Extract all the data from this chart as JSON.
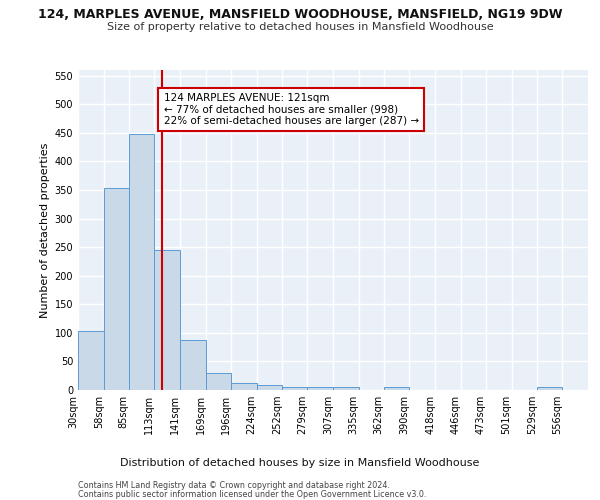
{
  "title1": "124, MARPLES AVENUE, MANSFIELD WOODHOUSE, MANSFIELD, NG19 9DW",
  "title2": "Size of property relative to detached houses in Mansfield Woodhouse",
  "xlabel": "Distribution of detached houses by size in Mansfield Woodhouse",
  "ylabel": "Number of detached properties",
  "footer1": "Contains HM Land Registry data © Crown copyright and database right 2024.",
  "footer2": "Contains public sector information licensed under the Open Government Licence v3.0.",
  "bin_edges": [
    30,
    58,
    85,
    113,
    141,
    169,
    196,
    224,
    252,
    279,
    307,
    335,
    362,
    390,
    418,
    446,
    473,
    501,
    529,
    556,
    584
  ],
  "bar_heights": [
    103,
    353,
    448,
    245,
    88,
    30,
    13,
    9,
    5,
    5,
    5,
    0,
    5,
    0,
    0,
    0,
    0,
    0,
    5,
    0
  ],
  "bar_color": "#c9d9e8",
  "bar_edge_color": "#5b9bd5",
  "property_size": 121,
  "vline_color": "#cc0000",
  "annotation_text": "124 MARPLES AVENUE: 121sqm\n← 77% of detached houses are smaller (998)\n22% of semi-detached houses are larger (287) →",
  "annotation_box_color": "#ffffff",
  "annotation_box_edge": "#cc0000",
  "ylim": [
    0,
    560
  ],
  "yticks": [
    0,
    50,
    100,
    150,
    200,
    250,
    300,
    350,
    400,
    450,
    500,
    550
  ],
  "bg_color": "#eaf0f8",
  "grid_color": "#ffffff",
  "title1_fontsize": 9,
  "title2_fontsize": 8,
  "axis_label_fontsize": 8,
  "tick_fontsize": 7,
  "annotation_fontsize": 7.5,
  "footer_fontsize": 5.8
}
